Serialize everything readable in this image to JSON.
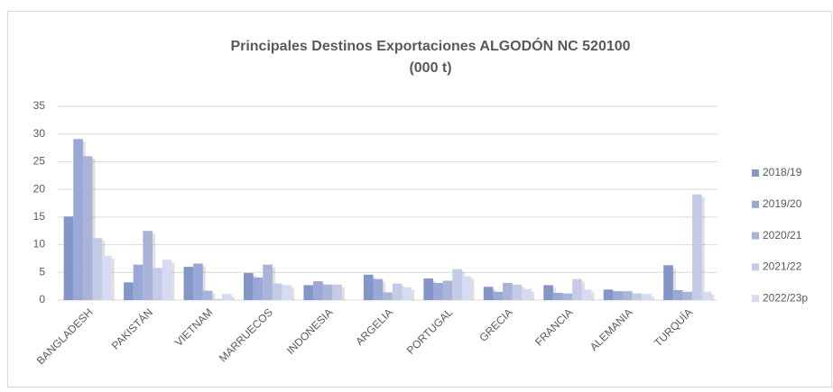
{
  "chart_data": {
    "type": "bar",
    "title": "Principales Destinos Exportaciones ALGODÓN NC 520100",
    "subtitle": "(000 t)",
    "categories": [
      "BANGLADESH",
      "PAKISTÁN",
      "VIETNAM",
      "MARRUECOS",
      "INDONESIA",
      "ARGELIA",
      "PORTUGAL",
      "GRECIA",
      "FRANCIA",
      "ALEMANIA",
      "TURQUÍA"
    ],
    "series": [
      {
        "name": "2018/19",
        "color": "#8496c8",
        "values": [
          15.1,
          3.2,
          6.0,
          4.9,
          2.7,
          4.6,
          3.9,
          2.4,
          2.7,
          1.9,
          6.3
        ]
      },
      {
        "name": "2019/20",
        "color": "#9aa8d8",
        "values": [
          29.1,
          6.4,
          6.6,
          4.1,
          3.4,
          3.8,
          3.1,
          1.5,
          1.3,
          1.6,
          1.8
        ]
      },
      {
        "name": "2020/21",
        "color": "#a9b4d8",
        "values": [
          26.0,
          12.5,
          1.7,
          6.4,
          2.8,
          1.4,
          3.5,
          3.1,
          1.2,
          1.6,
          1.5
        ]
      },
      {
        "name": "2021/22",
        "color": "#c3cbe7",
        "values": [
          11.2,
          5.8,
          0.2,
          3.0,
          2.8,
          3.0,
          5.6,
          2.8,
          3.8,
          1.2,
          19.1
        ]
      },
      {
        "name": "2022/23p",
        "color": "#d5dbf0",
        "values": [
          8.0,
          7.3,
          1.1,
          2.7,
          0.0,
          2.3,
          4.3,
          2.0,
          1.9,
          1.1,
          1.5
        ]
      }
    ],
    "ylim": [
      0,
      35
    ],
    "yticks": [
      0,
      5,
      10,
      15,
      20,
      25,
      30,
      35
    ],
    "grid": true,
    "legend": "right"
  }
}
